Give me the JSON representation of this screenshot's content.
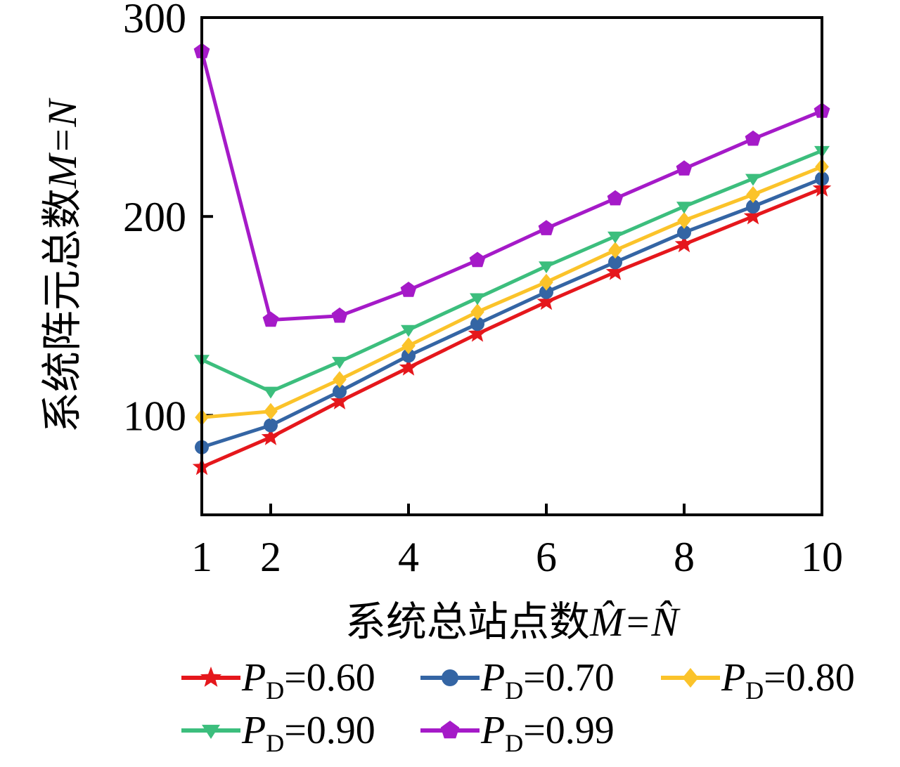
{
  "chart_data": {
    "type": "line",
    "x": [
      1,
      2,
      3,
      4,
      5,
      6,
      7,
      8,
      9,
      10
    ],
    "series": [
      {
        "name": "P_D=0.60",
        "marker": "star",
        "color": "#e5171c",
        "values": [
          74,
          89,
          107,
          124,
          141,
          157,
          172,
          186,
          200,
          214
        ]
      },
      {
        "name": "P_D=0.70",
        "marker": "circle",
        "color": "#3465a4",
        "values": [
          84,
          95,
          112,
          130,
          146,
          162,
          177,
          192,
          205,
          219
        ]
      },
      {
        "name": "P_D=0.80",
        "marker": "diamond",
        "color": "#fbc32a",
        "values": [
          99,
          102,
          118,
          135,
          152,
          167,
          183,
          198,
          211,
          225
        ]
      },
      {
        "name": "P_D=0.90",
        "marker": "triangle-down",
        "color": "#3cbe7d",
        "values": [
          128,
          112,
          127,
          143,
          159,
          175,
          190,
          205,
          219,
          233
        ]
      },
      {
        "name": "P_D=0.99",
        "marker": "pentagon",
        "color": "#a51ac8",
        "values": [
          283,
          148,
          150,
          163,
          178,
          194,
          209,
          224,
          239,
          253
        ]
      }
    ],
    "title": "",
    "xlabel": "系统总站点数M̂=N̂",
    "xlabel_cjk": "系统总站点数",
    "xlabel_math": "M̂=N̂",
    "ylabel": "系统阵元总数M=N",
    "ylabel_cjk": "系统阵元总数",
    "ylabel_math": "M=N",
    "xticks": [
      1,
      2,
      4,
      6,
      8,
      10
    ],
    "yticks": [
      100,
      200,
      300
    ],
    "xlim": [
      1,
      10
    ],
    "ylim": [
      50,
      300
    ],
    "grid": false,
    "legend_position": "below"
  }
}
